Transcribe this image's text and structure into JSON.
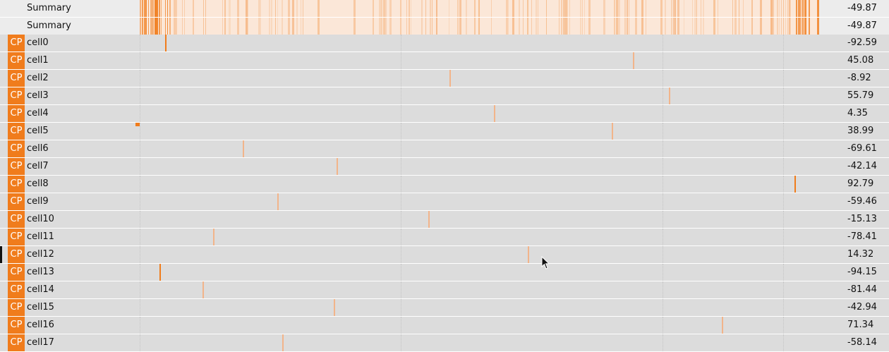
{
  "domain_min": -100,
  "domain_max": 100,
  "summary_rows": [
    {
      "label": "Summary",
      "value": "-49.87"
    },
    {
      "label": "Summary",
      "value": "-49.87"
    }
  ],
  "badge_text": "CP",
  "cells": [
    {
      "name": "cell0",
      "value": "-92.59",
      "v": -92.59,
      "strong": true
    },
    {
      "name": "cell1",
      "value": "45.08",
      "v": 45.08,
      "strong": false
    },
    {
      "name": "cell2",
      "value": "-8.92",
      "v": -8.92,
      "strong": false
    },
    {
      "name": "cell3",
      "value": "55.79",
      "v": 55.79,
      "strong": false
    },
    {
      "name": "cell4",
      "value": "4.35",
      "v": 4.35,
      "strong": false
    },
    {
      "name": "cell5",
      "value": "38.99",
      "v": 38.99,
      "strong": false
    },
    {
      "name": "cell6",
      "value": "-69.61",
      "v": -69.61,
      "strong": false
    },
    {
      "name": "cell7",
      "value": "-42.14",
      "v": -42.14,
      "strong": false
    },
    {
      "name": "cell8",
      "value": "92.79",
      "v": 92.79,
      "strong": true
    },
    {
      "name": "cell9",
      "value": "-59.46",
      "v": -59.46,
      "strong": false
    },
    {
      "name": "cell10",
      "value": "-15.13",
      "v": -15.13,
      "strong": false
    },
    {
      "name": "cell11",
      "value": "-78.41",
      "v": -78.41,
      "strong": false
    },
    {
      "name": "cell12",
      "value": "14.32",
      "v": 14.32,
      "strong": false
    },
    {
      "name": "cell13",
      "value": "-94.15",
      "v": -94.15,
      "strong": true
    },
    {
      "name": "cell14",
      "value": "-81.44",
      "v": -81.44,
      "strong": false
    },
    {
      "name": "cell15",
      "value": "-42.94",
      "v": -42.94,
      "strong": false
    },
    {
      "name": "cell16",
      "value": "71.34",
      "v": 71.34,
      "strong": false
    },
    {
      "name": "cell17",
      "value": "-58.14",
      "v": -58.14,
      "strong": false
    }
  ],
  "colors": {
    "accent": "#f07c1c",
    "tick_light": "#f2b48a",
    "heat_base": "#fbe7d8"
  }
}
